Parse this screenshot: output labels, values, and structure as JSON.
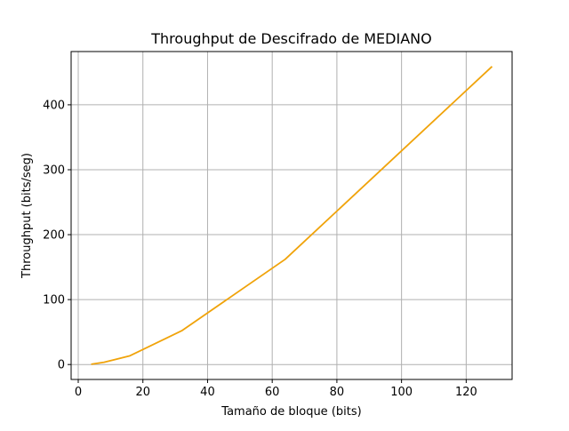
{
  "chart_data": {
    "type": "line",
    "title": "Throughput de Descifrado de MEDIANO",
    "xlabel": "Tamaño de bloque (bits)",
    "ylabel": "Throughput (bits/seg)",
    "xlim": [
      -2.2,
      134.2
    ],
    "ylim": [
      -23,
      482
    ],
    "xticks": [
      0,
      20,
      40,
      60,
      80,
      100,
      120
    ],
    "yticks": [
      0,
      100,
      200,
      300,
      400
    ],
    "grid": true,
    "legend": "none",
    "series": [
      {
        "color": "#f0a30a",
        "x": [
          4,
          8,
          16,
          32,
          64,
          128
        ],
        "y": [
          0.5,
          3.5,
          13.5,
          52,
          162,
          459
        ]
      }
    ]
  }
}
